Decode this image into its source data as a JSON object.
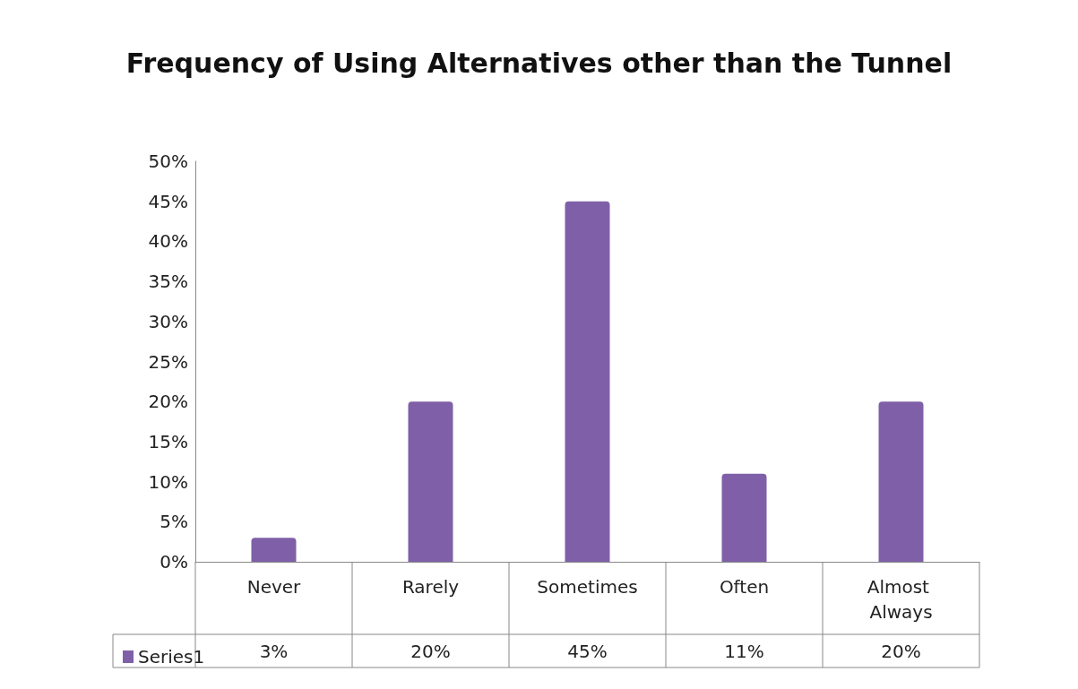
{
  "chart_data": {
    "type": "bar",
    "title": "Frequency of Using Alternatives other than the Tunnel",
    "categories": [
      "Never",
      "Rarely",
      "Sometimes",
      "Often",
      "Almost Always"
    ],
    "series": [
      {
        "name": "Series1",
        "color": "#7f60a8",
        "values": [
          3,
          20,
          45,
          11,
          20
        ],
        "value_labels": [
          "3%",
          "20%",
          "45%",
          "11%",
          "20%"
        ]
      }
    ],
    "ylim": [
      0,
      50
    ],
    "yticks": [
      {
        "value": 0,
        "label": "0%"
      },
      {
        "value": 5,
        "label": "5%"
      },
      {
        "value": 10,
        "label": "10%"
      },
      {
        "value": 15,
        "label": "15%"
      },
      {
        "value": 20,
        "label": "20%"
      },
      {
        "value": 25,
        "label": "25%"
      },
      {
        "value": 30,
        "label": "30%"
      },
      {
        "value": 35,
        "label": "35%"
      },
      {
        "value": 40,
        "label": "40%"
      },
      {
        "value": 45,
        "label": "45%"
      },
      {
        "value": 50,
        "label": "50%"
      }
    ],
    "grid": false,
    "legend": "bottom left"
  }
}
